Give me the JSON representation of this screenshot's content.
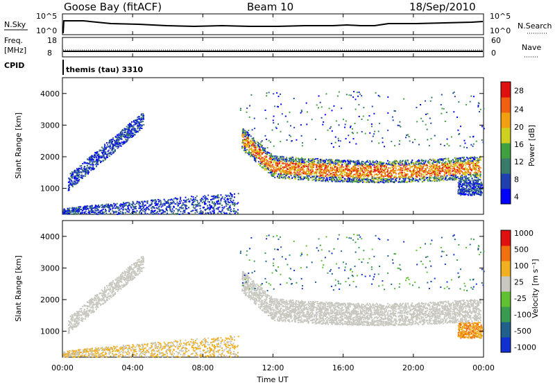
{
  "header": {
    "site": "Goose Bay (fitACF)",
    "beam": "Beam 10",
    "date": "18/Sep/2010"
  },
  "noise_panel": {
    "left_label": "N.Sky",
    "left_ticks": [
      "10^5",
      "10^0"
    ],
    "right_ticks": [
      "10^5",
      "10^0"
    ],
    "right_label": "N.Search"
  },
  "freq_panel": {
    "left_label_1": "Freq.",
    "left_label_2": "[MHz]",
    "left_ticks": [
      "18",
      "8"
    ],
    "right_ticks": [
      "60",
      "0"
    ],
    "right_label": "Nave"
  },
  "cpid_panel": {
    "label": "CPID",
    "value": "themis (tau) 3310"
  },
  "chart_data": [
    {
      "type": "heatmap",
      "ylabel": "Slant Range [km]",
      "yticks": [
        "4000",
        "3000",
        "2000",
        "1000"
      ],
      "colorbar_label": "Power [dB]",
      "colorbar_ticks": [
        "28",
        "24",
        "20",
        "16",
        "12",
        "8",
        "4"
      ],
      "colors": [
        "#0000ff",
        "#2040b0",
        "#3a7a6a",
        "#40a040",
        "#d0d020",
        "#f0a010",
        "#f06010",
        "#e01010"
      ]
    },
    {
      "type": "heatmap",
      "ylabel": "Slant Range [km]",
      "yticks": [
        "4000",
        "3000",
        "2000",
        "1000"
      ],
      "xticks": [
        "00:00",
        "04:00",
        "08:00",
        "12:00",
        "16:00",
        "20:00",
        "00:00"
      ],
      "xlabel": "Time UT",
      "colorbar_label": "Velocity  [m s⁻¹]",
      "colorbar_ticks": [
        "1000",
        "500",
        "100",
        "25",
        "-25",
        "-100",
        "-500",
        "-1000"
      ],
      "colors": [
        "#1030d0",
        "#20608a",
        "#3a9a50",
        "#60c030",
        "#c8c8c0",
        "#f0b020",
        "#f07010",
        "#e01010"
      ]
    }
  ]
}
